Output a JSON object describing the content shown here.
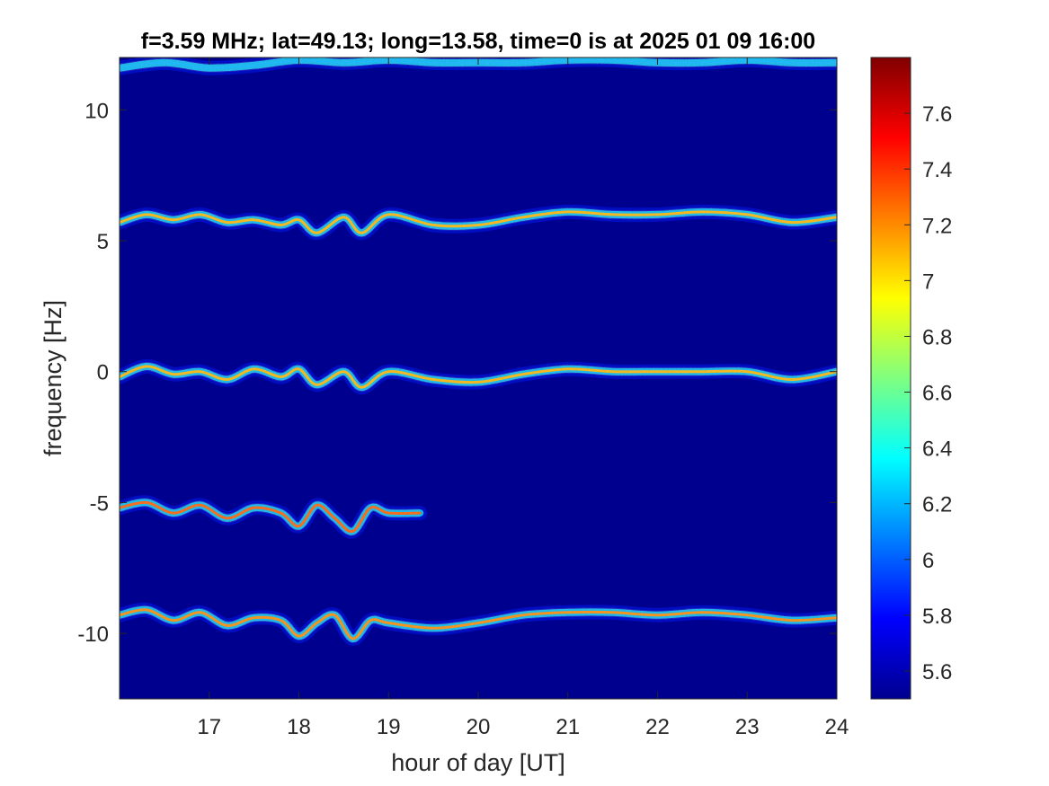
{
  "chart_data": {
    "type": "heatmap",
    "title": "f=3.59 MHz;  lat=49.13; long=13.58, time=0 is at 2025 01 09 16:00",
    "xlabel": "hour of day [UT]",
    "ylabel": "frequency [Hz]",
    "xlim": [
      16,
      24
    ],
    "ylim": [
      -12.5,
      12
    ],
    "x_ticks": [
      17,
      18,
      19,
      20,
      21,
      22,
      23,
      24
    ],
    "x_tick_labels": [
      "17",
      "18",
      "19",
      "20",
      "21",
      "22",
      "23",
      "24"
    ],
    "y_ticks": [
      10,
      5,
      0,
      -5,
      -10
    ],
    "y_tick_labels": [
      "10",
      "5",
      "0",
      "-5",
      "-10"
    ],
    "colorbar": {
      "colormap": "jet",
      "clim": [
        5.5,
        7.8
      ],
      "ticks": [
        7.6,
        7.4,
        7.2,
        7,
        6.8,
        6.6,
        6.4,
        6.2,
        6,
        5.8,
        5.6
      ],
      "tick_labels": [
        "7.6",
        "7.4",
        "7.2",
        "7",
        "6.8",
        "6.6",
        "6.4",
        "6.2",
        "6",
        "5.8",
        "5.6"
      ]
    },
    "background_color": "#00008f",
    "grid": false,
    "series": [
      {
        "name": "",
        "x_start": 16.0,
        "x_end": 24.0,
        "x": [
          16.0,
          16.5,
          17.0,
          17.5,
          18.0,
          18.5,
          19.0,
          19.5,
          20.0,
          20.5,
          21.0,
          21.5,
          22.0,
          22.5,
          23.0,
          23.5,
          24.0
        ],
        "y": [
          11.6,
          11.8,
          11.6,
          11.7,
          11.9,
          11.8,
          11.9,
          11.8,
          11.8,
          11.8,
          11.9,
          11.9,
          11.8,
          11.8,
          11.9,
          11.8,
          11.8
        ],
        "intensity": 6.2
      },
      {
        "name": "",
        "x_start": 16.0,
        "x_end": 24.0,
        "x": [
          16.0,
          16.3,
          16.6,
          16.9,
          17.2,
          17.5,
          17.8,
          18.0,
          18.2,
          18.5,
          18.7,
          19.0,
          19.5,
          20.0,
          20.5,
          21.0,
          21.5,
          22.0,
          22.5,
          23.0,
          23.5,
          24.0
        ],
        "y": [
          5.7,
          6.0,
          5.8,
          6.0,
          5.7,
          5.8,
          5.6,
          5.8,
          5.3,
          5.9,
          5.3,
          6.0,
          5.6,
          5.6,
          5.9,
          6.1,
          6.0,
          6.0,
          6.1,
          6.0,
          5.7,
          5.9
        ],
        "intensity": 7.1
      },
      {
        "name": "",
        "x_start": 16.0,
        "x_end": 24.0,
        "x": [
          16.0,
          16.3,
          16.6,
          16.9,
          17.2,
          17.5,
          17.8,
          18.0,
          18.2,
          18.5,
          18.7,
          19.0,
          19.5,
          20.0,
          20.5,
          21.0,
          21.5,
          22.0,
          22.5,
          23.0,
          23.5,
          24.0
        ],
        "y": [
          -0.2,
          0.2,
          -0.1,
          0.0,
          -0.3,
          0.1,
          -0.2,
          0.1,
          -0.5,
          0.0,
          -0.6,
          0.0,
          -0.3,
          -0.4,
          -0.1,
          0.1,
          0.0,
          0.0,
          0.0,
          0.0,
          -0.3,
          0.0
        ],
        "intensity": 7.1
      },
      {
        "name": "",
        "x_start": 16.0,
        "x_end": 19.35,
        "x": [
          16.0,
          16.3,
          16.6,
          16.9,
          17.2,
          17.5,
          17.8,
          18.0,
          18.2,
          18.4,
          18.6,
          18.8,
          19.0,
          19.35
        ],
        "y": [
          -5.2,
          -5.0,
          -5.4,
          -5.1,
          -5.6,
          -5.2,
          -5.4,
          -5.9,
          -5.1,
          -5.6,
          -6.1,
          -5.2,
          -5.4,
          -5.4
        ],
        "intensity": 7.3
      },
      {
        "name": "",
        "x_start": 16.0,
        "x_end": 24.0,
        "x": [
          16.0,
          16.3,
          16.6,
          16.9,
          17.2,
          17.5,
          17.8,
          18.0,
          18.2,
          18.4,
          18.6,
          18.8,
          19.0,
          19.5,
          20.0,
          20.5,
          21.0,
          21.5,
          22.0,
          22.5,
          23.0,
          23.5,
          24.0
        ],
        "y": [
          -9.3,
          -9.1,
          -9.5,
          -9.2,
          -9.7,
          -9.4,
          -9.5,
          -10.1,
          -9.6,
          -9.3,
          -10.2,
          -9.5,
          -9.6,
          -9.8,
          -9.6,
          -9.3,
          -9.2,
          -9.2,
          -9.3,
          -9.2,
          -9.3,
          -9.5,
          -9.4
        ],
        "intensity": 7.2
      }
    ]
  }
}
